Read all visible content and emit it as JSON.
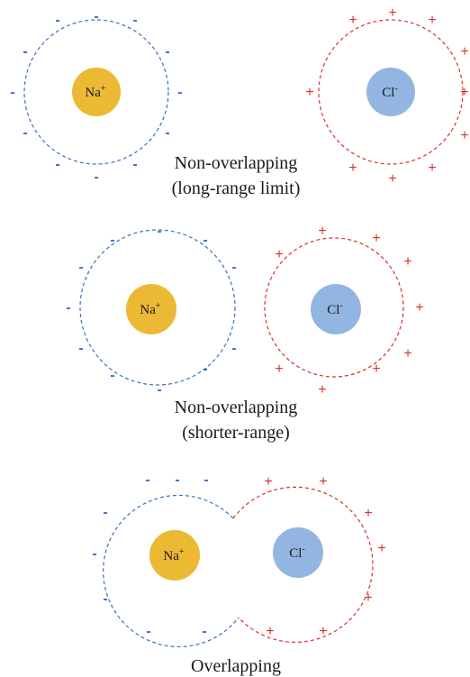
{
  "colors": {
    "na_fill": "#ecb935",
    "cl_fill": "#93b5e2",
    "blue_cloud": "#3a6fc4",
    "red_cloud": "#d9302c"
  },
  "ions": {
    "na_label": "Na",
    "na_charge": "+",
    "cl_label": "Cl",
    "cl_charge": "-"
  },
  "symbols": {
    "minus": "-",
    "plus": "+"
  },
  "panels": [
    {
      "caption_line1": "Non-overlapping",
      "caption_line2": "(long-range limit)"
    },
    {
      "caption_line1": "Non-overlapping",
      "caption_line2": "(shorter-range)"
    },
    {
      "caption_line1": "Overlapping",
      "caption_line2": ""
    }
  ]
}
